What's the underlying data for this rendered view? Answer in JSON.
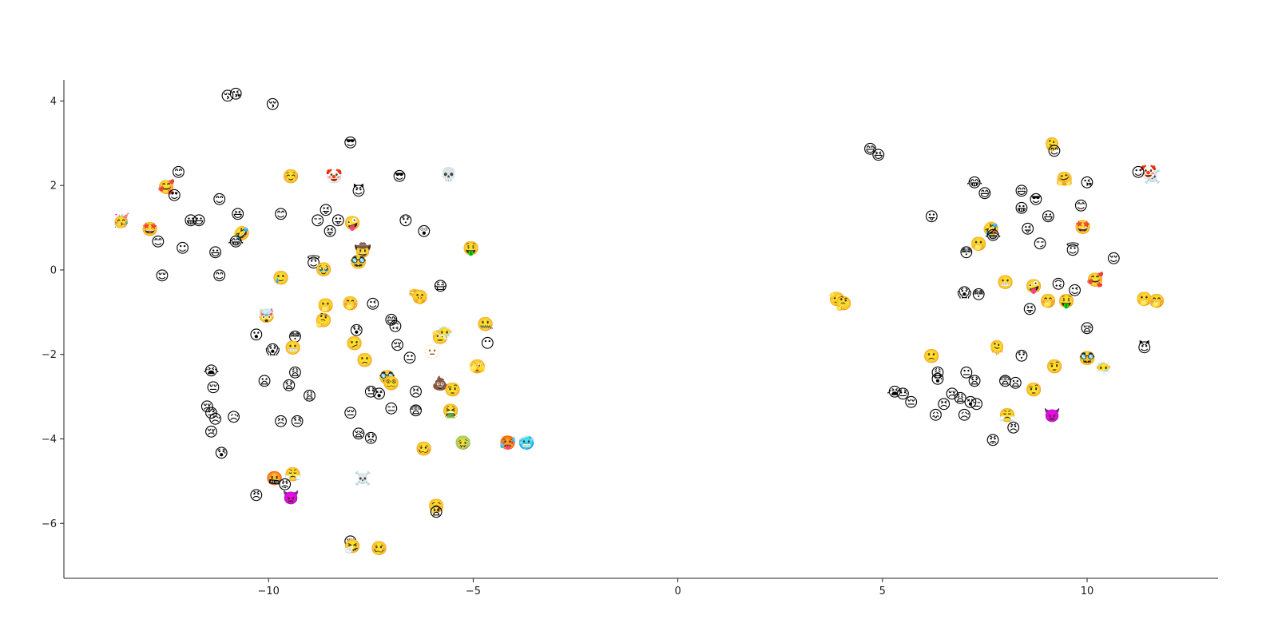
{
  "chart_data": {
    "type": "scatter",
    "title": "",
    "xlabel": "",
    "ylabel": "",
    "xlim": [
      -15,
      13.2
    ],
    "ylim": [
      -7.3,
      4.5
    ],
    "grid": false,
    "legend": "none",
    "xticks": [
      {
        "value": -10,
        "label": "−10"
      },
      {
        "value": -5,
        "label": "−5"
      },
      {
        "value": 0,
        "label": "0"
      },
      {
        "value": 5,
        "label": "5"
      },
      {
        "value": 10,
        "label": "10"
      }
    ],
    "yticks": [
      {
        "value": 4,
        "label": "4"
      },
      {
        "value": 2,
        "label": "2"
      },
      {
        "value": 0,
        "label": "0"
      },
      {
        "value": -2,
        "label": "−2"
      },
      {
        "value": -4,
        "label": "−4"
      },
      {
        "value": -6,
        "label": "−6"
      }
    ],
    "points": [
      {
        "x": -11.0,
        "y": 4.1,
        "label": "😚"
      },
      {
        "x": -10.8,
        "y": 4.15,
        "label": "😘"
      },
      {
        "x": -9.9,
        "y": 3.9,
        "label": "😚"
      },
      {
        "x": -8.0,
        "y": 3.0,
        "label": "😎"
      },
      {
        "x": -12.2,
        "y": 2.3,
        "label": "😊"
      },
      {
        "x": -12.5,
        "y": 1.95,
        "label": "🥰"
      },
      {
        "x": -12.3,
        "y": 1.75,
        "label": "😍"
      },
      {
        "x": -11.2,
        "y": 1.65,
        "label": "😊"
      },
      {
        "x": -9.45,
        "y": 2.2,
        "label": "☺️"
      },
      {
        "x": -8.4,
        "y": 2.2,
        "label": "🤡"
      },
      {
        "x": -7.8,
        "y": 1.85,
        "label": "😈"
      },
      {
        "x": -6.8,
        "y": 2.2,
        "label": "😎"
      },
      {
        "x": -5.6,
        "y": 2.25,
        "label": "💀"
      },
      {
        "x": -13.6,
        "y": 1.15,
        "label": "🥳"
      },
      {
        "x": -12.9,
        "y": 0.95,
        "label": "🤩"
      },
      {
        "x": -11.9,
        "y": 1.15,
        "label": "😀"
      },
      {
        "x": -11.7,
        "y": 1.15,
        "label": "😃"
      },
      {
        "x": -10.75,
        "y": 1.3,
        "label": "😆"
      },
      {
        "x": -10.65,
        "y": 0.85,
        "label": "🤣"
      },
      {
        "x": -10.8,
        "y": 0.65,
        "label": "😂"
      },
      {
        "x": -9.7,
        "y": 1.3,
        "label": "😊"
      },
      {
        "x": -8.8,
        "y": 1.15,
        "label": "😏"
      },
      {
        "x": -8.6,
        "y": 1.4,
        "label": "😜"
      },
      {
        "x": -8.3,
        "y": 1.15,
        "label": "😛"
      },
      {
        "x": -8.5,
        "y": 0.9,
        "label": "😝"
      },
      {
        "x": -7.95,
        "y": 1.1,
        "label": "🤪"
      },
      {
        "x": -6.65,
        "y": 1.15,
        "label": "😯"
      },
      {
        "x": -6.2,
        "y": 0.9,
        "label": "😲"
      },
      {
        "x": -12.7,
        "y": 0.65,
        "label": "😊"
      },
      {
        "x": -12.1,
        "y": 0.5,
        "label": "☺"
      },
      {
        "x": -11.3,
        "y": 0.4,
        "label": "😃"
      },
      {
        "x": -7.7,
        "y": 0.45,
        "label": "🤠"
      },
      {
        "x": -5.05,
        "y": 0.5,
        "label": "🤑"
      },
      {
        "x": -8.9,
        "y": 0.15,
        "label": "😇"
      },
      {
        "x": -8.65,
        "y": 0.0,
        "label": "🥹"
      },
      {
        "x": -7.8,
        "y": 0.18,
        "label": "🥸"
      },
      {
        "x": -12.6,
        "y": -0.15,
        "label": "😌"
      },
      {
        "x": -11.2,
        "y": -0.15,
        "label": "😊"
      },
      {
        "x": -9.7,
        "y": -0.2,
        "label": "🥲"
      },
      {
        "x": -5.8,
        "y": -0.4,
        "label": "😷"
      },
      {
        "x": -6.4,
        "y": -0.6,
        "label": "🤏"
      },
      {
        "x": -6.3,
        "y": -0.65,
        "label": "🤫"
      },
      {
        "x": -10.05,
        "y": -1.1,
        "label": "🤯"
      },
      {
        "x": -8.6,
        "y": -0.85,
        "label": "🫢"
      },
      {
        "x": -8.0,
        "y": -0.8,
        "label": "🤭"
      },
      {
        "x": -7.45,
        "y": -0.82,
        "label": "😉"
      },
      {
        "x": -8.65,
        "y": -1.2,
        "label": "🤔"
      },
      {
        "x": -7.0,
        "y": -1.2,
        "label": "😅"
      },
      {
        "x": -6.9,
        "y": -1.35,
        "label": "🙃"
      },
      {
        "x": -4.7,
        "y": -1.3,
        "label": "🤐"
      },
      {
        "x": -10.3,
        "y": -1.55,
        "label": "😮"
      },
      {
        "x": -9.35,
        "y": -1.6,
        "label": "😳"
      },
      {
        "x": -7.85,
        "y": -1.45,
        "label": "😰"
      },
      {
        "x": -5.8,
        "y": -1.6,
        "label": "🫡"
      },
      {
        "x": -5.7,
        "y": -1.5,
        "label": "😶‍🌫️"
      },
      {
        "x": -4.65,
        "y": -1.75,
        "label": "😶"
      },
      {
        "x": -9.9,
        "y": -1.9,
        "label": "😱"
      },
      {
        "x": -9.4,
        "y": -1.85,
        "label": "😬"
      },
      {
        "x": -7.9,
        "y": -1.75,
        "label": "🫤"
      },
      {
        "x": -6.85,
        "y": -1.8,
        "label": "😢"
      },
      {
        "x": -6.0,
        "y": -1.95,
        "label": "🫥"
      },
      {
        "x": -6.55,
        "y": -2.1,
        "label": "😐"
      },
      {
        "x": -7.65,
        "y": -2.15,
        "label": "🙁"
      },
      {
        "x": -4.9,
        "y": -2.3,
        "label": "🫣"
      },
      {
        "x": -11.4,
        "y": -2.4,
        "label": "😭"
      },
      {
        "x": -9.35,
        "y": -2.45,
        "label": "😩"
      },
      {
        "x": -7.1,
        "y": -2.55,
        "label": "🥸"
      },
      {
        "x": -7.0,
        "y": -2.7,
        "label": "😵‍💫"
      },
      {
        "x": -11.35,
        "y": -2.8,
        "label": "😔"
      },
      {
        "x": -10.1,
        "y": -2.65,
        "label": "😦"
      },
      {
        "x": -9.5,
        "y": -2.75,
        "label": "😧"
      },
      {
        "x": -5.8,
        "y": -2.7,
        "label": "💩"
      },
      {
        "x": -5.5,
        "y": -2.85,
        "label": "🤨"
      },
      {
        "x": -7.5,
        "y": -2.9,
        "label": "😓"
      },
      {
        "x": -7.3,
        "y": -2.95,
        "label": "😵"
      },
      {
        "x": -6.4,
        "y": -2.9,
        "label": "😣"
      },
      {
        "x": -9.0,
        "y": -3.0,
        "label": "😩"
      },
      {
        "x": -11.5,
        "y": -3.25,
        "label": "😢"
      },
      {
        "x": -11.4,
        "y": -3.4,
        "label": "😓"
      },
      {
        "x": -11.3,
        "y": -3.55,
        "label": "😥"
      },
      {
        "x": -10.85,
        "y": -3.5,
        "label": "😥"
      },
      {
        "x": -9.7,
        "y": -3.6,
        "label": "😣"
      },
      {
        "x": -9.3,
        "y": -3.6,
        "label": "😓"
      },
      {
        "x": -8.0,
        "y": -3.4,
        "label": "😔"
      },
      {
        "x": -7.0,
        "y": -3.3,
        "label": "😑"
      },
      {
        "x": -6.4,
        "y": -3.35,
        "label": "😨"
      },
      {
        "x": -5.55,
        "y": -3.35,
        "label": "🤮"
      },
      {
        "x": -11.4,
        "y": -3.85,
        "label": "😢"
      },
      {
        "x": -7.8,
        "y": -3.9,
        "label": "😪"
      },
      {
        "x": -7.5,
        "y": -4.0,
        "label": "😟"
      },
      {
        "x": -6.2,
        "y": -4.25,
        "label": "🥴"
      },
      {
        "x": -5.25,
        "y": -4.1,
        "label": "🤢"
      },
      {
        "x": -4.15,
        "y": -4.1,
        "label": "🥵"
      },
      {
        "x": -3.7,
        "y": -4.1,
        "label": "🥶"
      },
      {
        "x": -11.15,
        "y": -4.35,
        "label": "😰"
      },
      {
        "x": -9.4,
        "y": -4.85,
        "label": "😤"
      },
      {
        "x": -9.85,
        "y": -4.95,
        "label": "🤬"
      },
      {
        "x": -9.6,
        "y": -5.1,
        "label": "😡"
      },
      {
        "x": -9.45,
        "y": -5.4,
        "label": "👿"
      },
      {
        "x": -10.3,
        "y": -5.35,
        "label": "😠"
      },
      {
        "x": -7.7,
        "y": -4.95,
        "label": "☠️"
      },
      {
        "x": -5.9,
        "y": -5.6,
        "label": "🥱"
      },
      {
        "x": -5.9,
        "y": -5.75,
        "label": "😫"
      },
      {
        "x": -8.0,
        "y": -6.45,
        "label": "😪"
      },
      {
        "x": -7.95,
        "y": -6.55,
        "label": "🤧"
      },
      {
        "x": -7.3,
        "y": -6.6,
        "label": "🥴"
      },
      {
        "x": 4.7,
        "y": 2.85,
        "label": "😅"
      },
      {
        "x": 4.9,
        "y": 2.7,
        "label": "😆"
      },
      {
        "x": 9.15,
        "y": 2.95,
        "label": "🫠"
      },
      {
        "x": 9.2,
        "y": 2.8,
        "label": "😊"
      },
      {
        "x": 11.6,
        "y": 2.2,
        "label": "☠️"
      },
      {
        "x": 11.5,
        "y": 2.3,
        "label": "🤡"
      },
      {
        "x": 11.25,
        "y": 2.3,
        "label": "☺"
      },
      {
        "x": 7.25,
        "y": 2.05,
        "label": "😂"
      },
      {
        "x": 7.5,
        "y": 1.8,
        "label": "😅"
      },
      {
        "x": 8.4,
        "y": 1.85,
        "label": "😄"
      },
      {
        "x": 8.75,
        "y": 1.65,
        "label": "😎"
      },
      {
        "x": 9.45,
        "y": 2.15,
        "label": "🤗"
      },
      {
        "x": 10.0,
        "y": 2.05,
        "label": "😘"
      },
      {
        "x": 8.4,
        "y": 1.45,
        "label": "😀"
      },
      {
        "x": 9.85,
        "y": 1.5,
        "label": "😊"
      },
      {
        "x": 6.2,
        "y": 1.25,
        "label": "😛"
      },
      {
        "x": 9.05,
        "y": 1.25,
        "label": "😃"
      },
      {
        "x": 7.65,
        "y": 0.95,
        "label": "🤣"
      },
      {
        "x": 7.7,
        "y": 0.8,
        "label": "😂"
      },
      {
        "x": 8.55,
        "y": 0.95,
        "label": "😜"
      },
      {
        "x": 9.9,
        "y": 1.0,
        "label": "🤩"
      },
      {
        "x": 7.35,
        "y": 0.6,
        "label": "🫢"
      },
      {
        "x": 7.05,
        "y": 0.4,
        "label": "😳"
      },
      {
        "x": 8.85,
        "y": 0.6,
        "label": "😏"
      },
      {
        "x": 9.65,
        "y": 0.45,
        "label": "😇"
      },
      {
        "x": 10.65,
        "y": 0.25,
        "label": "😌"
      },
      {
        "x": 3.9,
        "y": -0.7,
        "label": "🫡"
      },
      {
        "x": 4.05,
        "y": -0.8,
        "label": "🤔"
      },
      {
        "x": 8.0,
        "y": -0.3,
        "label": "😬"
      },
      {
        "x": 8.7,
        "y": -0.4,
        "label": "🤪"
      },
      {
        "x": 9.3,
        "y": -0.35,
        "label": "🙃"
      },
      {
        "x": 10.2,
        "y": -0.25,
        "label": "🥰"
      },
      {
        "x": 7.0,
        "y": -0.55,
        "label": "😱"
      },
      {
        "x": 7.35,
        "y": -0.6,
        "label": "😳"
      },
      {
        "x": 9.7,
        "y": -0.5,
        "label": "😉"
      },
      {
        "x": 9.05,
        "y": -0.75,
        "label": "🤭"
      },
      {
        "x": 9.5,
        "y": -0.75,
        "label": "🤑"
      },
      {
        "x": 11.4,
        "y": -0.7,
        "label": "🫢"
      },
      {
        "x": 11.7,
        "y": -0.75,
        "label": "🤭"
      },
      {
        "x": 8.6,
        "y": -0.95,
        "label": "😝"
      },
      {
        "x": 10.0,
        "y": -1.4,
        "label": "😪"
      },
      {
        "x": 7.8,
        "y": -1.85,
        "label": "🫠"
      },
      {
        "x": 11.4,
        "y": -1.85,
        "label": "😈"
      },
      {
        "x": 6.2,
        "y": -2.05,
        "label": "🙁"
      },
      {
        "x": 8.4,
        "y": -2.05,
        "label": "😯"
      },
      {
        "x": 10.0,
        "y": -2.1,
        "label": "🥸"
      },
      {
        "x": 9.2,
        "y": -2.3,
        "label": "🤨"
      },
      {
        "x": 10.4,
        "y": -2.35,
        "label": "😶‍🌫️"
      },
      {
        "x": 6.35,
        "y": -2.45,
        "label": "😩"
      },
      {
        "x": 6.35,
        "y": -2.6,
        "label": "😰"
      },
      {
        "x": 7.05,
        "y": -2.45,
        "label": "😐"
      },
      {
        "x": 7.25,
        "y": -2.65,
        "label": "😧"
      },
      {
        "x": 8.0,
        "y": -2.65,
        "label": "😨"
      },
      {
        "x": 8.25,
        "y": -2.7,
        "label": "😦"
      },
      {
        "x": 8.7,
        "y": -2.85,
        "label": "🤨"
      },
      {
        "x": 5.3,
        "y": -2.9,
        "label": "😭"
      },
      {
        "x": 5.5,
        "y": -2.95,
        "label": "😓"
      },
      {
        "x": 5.7,
        "y": -3.15,
        "label": "😔"
      },
      {
        "x": 6.7,
        "y": -2.95,
        "label": "😢"
      },
      {
        "x": 6.9,
        "y": -3.05,
        "label": "😩"
      },
      {
        "x": 7.15,
        "y": -3.15,
        "label": "😵"
      },
      {
        "x": 7.3,
        "y": -3.2,
        "label": "😑"
      },
      {
        "x": 6.5,
        "y": -3.2,
        "label": "😣"
      },
      {
        "x": 6.3,
        "y": -3.45,
        "label": "😖"
      },
      {
        "x": 7.0,
        "y": -3.45,
        "label": "😥"
      },
      {
        "x": 8.05,
        "y": -3.45,
        "label": "😤"
      },
      {
        "x": 9.15,
        "y": -3.45,
        "label": "👿"
      },
      {
        "x": 8.2,
        "y": -3.75,
        "label": "😠"
      },
      {
        "x": 7.7,
        "y": -4.05,
        "label": "😡"
      }
    ]
  }
}
